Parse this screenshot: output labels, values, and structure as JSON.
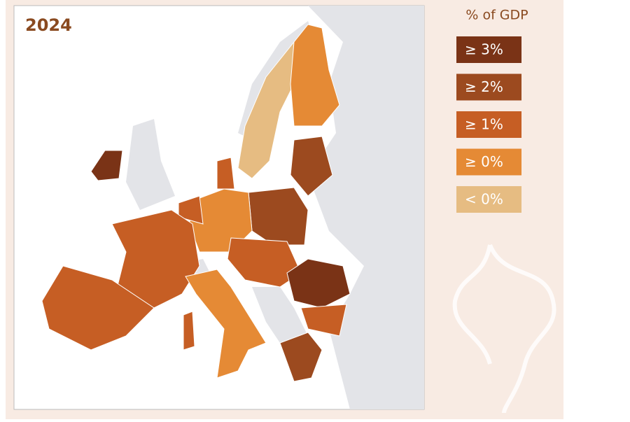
{
  "title": "2024",
  "legend": {
    "title": "% of GDP",
    "items": [
      {
        "label": "≥ 3%",
        "color": "#7a3316"
      },
      {
        "label": "≥ 2%",
        "color": "#9c4a1f"
      },
      {
        "label": "≥ 1%",
        "color": "#c65e24"
      },
      {
        "label": "≥ 0%",
        "color": "#e58a35"
      },
      {
        "label": "< 0%",
        "color": "#e6bc82"
      }
    ]
  }
}
